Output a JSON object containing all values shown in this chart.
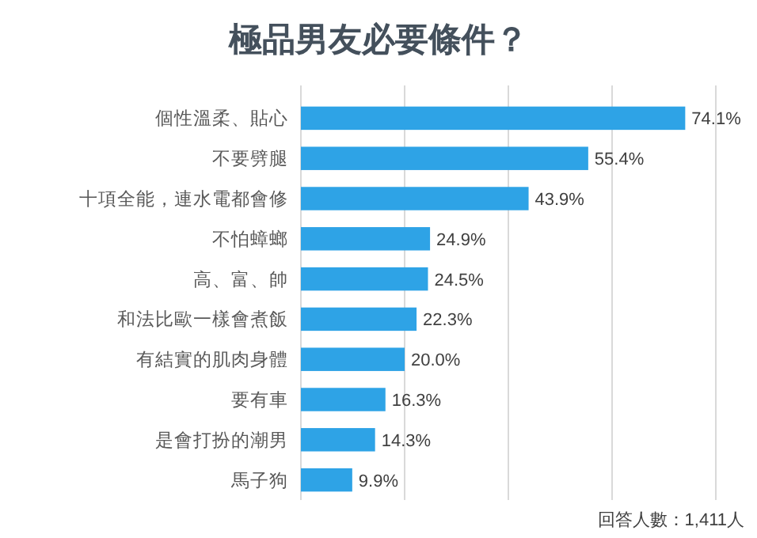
{
  "chart_data": {
    "type": "bar",
    "orientation": "horizontal",
    "title": "極品男友必要條件？",
    "categories": [
      "個性溫柔、貼心",
      "不要劈腿",
      "十項全能，連水電都會修",
      "不怕蟑螂",
      "高、富、帥",
      "和法比歐一樣會煮飯",
      "有結實的肌肉身體",
      "要有車",
      "是會打扮的潮男",
      "馬子狗"
    ],
    "values": [
      74.1,
      55.4,
      43.9,
      24.9,
      24.5,
      22.3,
      20.0,
      16.3,
      14.3,
      9.9
    ],
    "value_labels": [
      "74.1%",
      "55.4%",
      "43.9%",
      "24.9%",
      "24.5%",
      "22.3%",
      "20.0%",
      "16.3%",
      "14.3%",
      "9.9%"
    ],
    "color": "#2ea3e6",
    "xlim": [
      0,
      80
    ],
    "xticks": [
      {
        "value": 0,
        "label": null
      },
      {
        "value": 20,
        "label": null
      },
      {
        "value": 40,
        "label": null
      },
      {
        "value": 60,
        "label": null
      },
      {
        "value": 80,
        "label": null
      }
    ],
    "grid": "x",
    "annotations": [
      "回答人數：1,411人"
    ]
  }
}
